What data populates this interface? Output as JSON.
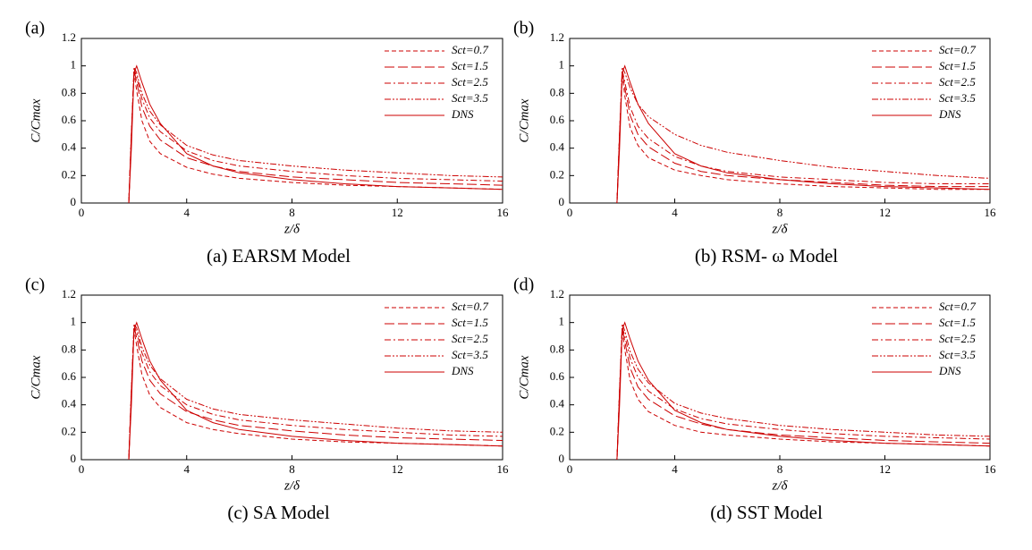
{
  "chart_data": [
    {
      "type": "line",
      "label": "(a)",
      "caption": "(a)  EARSM  Model",
      "xlabel": "z/δ",
      "ylabel": "C/Cmax",
      "xlim": [
        0,
        16
      ],
      "xticks": [
        0,
        4,
        8,
        12,
        16
      ],
      "ylim": [
        0,
        1.2
      ],
      "yticks": [
        0,
        0.2,
        0.4,
        0.6,
        0.8,
        1,
        1.2
      ],
      "legend": "upper right",
      "x": [
        1.8,
        1.9,
        2.0,
        2.1,
        2.3,
        2.6,
        3,
        4,
        5,
        6,
        8,
        10,
        12,
        14,
        16
      ],
      "series": [
        {
          "name": "Sct=0.7",
          "color": "#cc0000",
          "linestyle": "dashed",
          "values": [
            0,
            0.5,
            0.95,
            0.82,
            0.6,
            0.45,
            0.36,
            0.26,
            0.21,
            0.18,
            0.15,
            0.13,
            0.12,
            0.11,
            0.1
          ]
        },
        {
          "name": "Sct=1.5",
          "color": "#cc0000",
          "linestyle": "longdash",
          "values": [
            0,
            0.5,
            0.97,
            0.88,
            0.7,
            0.56,
            0.46,
            0.33,
            0.27,
            0.23,
            0.19,
            0.17,
            0.15,
            0.14,
            0.13
          ]
        },
        {
          "name": "Sct=2.5",
          "color": "#cc0000",
          "linestyle": "dashdot",
          "values": [
            0,
            0.5,
            0.98,
            0.92,
            0.76,
            0.62,
            0.52,
            0.38,
            0.31,
            0.27,
            0.23,
            0.2,
            0.18,
            0.17,
            0.16
          ]
        },
        {
          "name": "Sct=3.5",
          "color": "#cc0000",
          "linestyle": "dashdotdot",
          "values": [
            0,
            0.5,
            0.99,
            0.95,
            0.8,
            0.67,
            0.57,
            0.42,
            0.35,
            0.31,
            0.27,
            0.24,
            0.22,
            0.2,
            0.19
          ]
        },
        {
          "name": "DNS",
          "color": "#cc0000",
          "linestyle": "solid",
          "values": [
            0,
            0.4,
            0.95,
            1.0,
            0.88,
            0.72,
            0.58,
            0.36,
            0.27,
            0.22,
            0.17,
            0.14,
            0.12,
            0.11,
            0.1
          ]
        }
      ]
    },
    {
      "type": "line",
      "label": "(b)",
      "caption": "(b)  RSM- ω Model",
      "xlabel": "z/δ",
      "ylabel": "C/Cmax",
      "xlim": [
        0,
        16
      ],
      "xticks": [
        0,
        4,
        8,
        12,
        16
      ],
      "ylim": [
        0,
        1.2
      ],
      "yticks": [
        0,
        0.2,
        0.4,
        0.6,
        0.8,
        1,
        1.2
      ],
      "legend": "upper right",
      "x": [
        1.8,
        1.9,
        2.0,
        2.1,
        2.3,
        2.6,
        3,
        4,
        5,
        6,
        8,
        10,
        12,
        14,
        16
      ],
      "series": [
        {
          "name": "Sct=0.7",
          "color": "#cc0000",
          "linestyle": "dashed",
          "values": [
            0,
            0.5,
            0.94,
            0.78,
            0.55,
            0.42,
            0.33,
            0.24,
            0.2,
            0.17,
            0.14,
            0.12,
            0.11,
            0.1,
            0.1
          ]
        },
        {
          "name": "Sct=1.5",
          "color": "#cc0000",
          "linestyle": "longdash",
          "values": [
            0,
            0.5,
            0.96,
            0.84,
            0.64,
            0.5,
            0.41,
            0.29,
            0.23,
            0.2,
            0.17,
            0.15,
            0.13,
            0.12,
            0.12
          ]
        },
        {
          "name": "Sct=2.5",
          "color": "#cc0000",
          "linestyle": "dashdot",
          "values": [
            0,
            0.5,
            0.97,
            0.88,
            0.7,
            0.56,
            0.47,
            0.34,
            0.27,
            0.23,
            0.19,
            0.17,
            0.15,
            0.14,
            0.14
          ]
        },
        {
          "name": "Sct=3.5",
          "color": "#cc0000",
          "linestyle": "dashdotdot",
          "values": [
            0,
            0.5,
            0.99,
            0.95,
            0.84,
            0.72,
            0.63,
            0.5,
            0.42,
            0.37,
            0.31,
            0.26,
            0.23,
            0.2,
            0.18
          ]
        },
        {
          "name": "DNS",
          "color": "#cc0000",
          "linestyle": "solid",
          "values": [
            0,
            0.4,
            0.95,
            1.0,
            0.88,
            0.72,
            0.58,
            0.36,
            0.27,
            0.22,
            0.17,
            0.14,
            0.12,
            0.11,
            0.1
          ]
        }
      ]
    },
    {
      "type": "line",
      "label": "(c)",
      "caption": "(c)  SA  Model",
      "xlabel": "z/δ",
      "ylabel": "C/Cmax",
      "xlim": [
        0,
        16
      ],
      "xticks": [
        0,
        4,
        8,
        12,
        16
      ],
      "ylim": [
        0,
        1.2
      ],
      "yticks": [
        0,
        0.2,
        0.4,
        0.6,
        0.8,
        1,
        1.2
      ],
      "legend": "upper right",
      "x": [
        1.8,
        1.9,
        2.0,
        2.1,
        2.3,
        2.6,
        3,
        4,
        5,
        6,
        8,
        10,
        12,
        14,
        16
      ],
      "series": [
        {
          "name": "Sct=0.7",
          "color": "#cc0000",
          "linestyle": "dashed",
          "values": [
            0,
            0.5,
            0.95,
            0.83,
            0.62,
            0.47,
            0.38,
            0.27,
            0.22,
            0.19,
            0.15,
            0.13,
            0.12,
            0.11,
            0.1
          ]
        },
        {
          "name": "Sct=1.5",
          "color": "#cc0000",
          "linestyle": "longdash",
          "values": [
            0,
            0.5,
            0.97,
            0.89,
            0.72,
            0.58,
            0.48,
            0.35,
            0.29,
            0.25,
            0.21,
            0.18,
            0.16,
            0.15,
            0.14
          ]
        },
        {
          "name": "Sct=2.5",
          "color": "#cc0000",
          "linestyle": "dashdot",
          "values": [
            0,
            0.5,
            0.98,
            0.93,
            0.78,
            0.64,
            0.54,
            0.4,
            0.33,
            0.29,
            0.25,
            0.22,
            0.2,
            0.18,
            0.17
          ]
        },
        {
          "name": "Sct=3.5",
          "color": "#cc0000",
          "linestyle": "dashdotdot",
          "values": [
            0,
            0.5,
            0.99,
            0.96,
            0.82,
            0.69,
            0.59,
            0.44,
            0.37,
            0.33,
            0.29,
            0.26,
            0.23,
            0.21,
            0.2
          ]
        },
        {
          "name": "DNS",
          "color": "#cc0000",
          "linestyle": "solid",
          "values": [
            0,
            0.4,
            0.95,
            1.0,
            0.88,
            0.72,
            0.58,
            0.36,
            0.27,
            0.22,
            0.17,
            0.14,
            0.12,
            0.11,
            0.1
          ]
        }
      ]
    },
    {
      "type": "line",
      "label": "(d)",
      "caption": "(d)  SST  Model",
      "xlabel": "z/δ",
      "ylabel": "C/Cmax",
      "xlim": [
        0,
        16
      ],
      "xticks": [
        0,
        4,
        8,
        12,
        16
      ],
      "ylim": [
        0,
        1.2
      ],
      "yticks": [
        0,
        0.2,
        0.4,
        0.6,
        0.8,
        1,
        1.2
      ],
      "legend": "upper right",
      "x": [
        1.8,
        1.9,
        2.0,
        2.1,
        2.3,
        2.6,
        3,
        4,
        5,
        6,
        8,
        10,
        12,
        14,
        16
      ],
      "series": [
        {
          "name": "Sct=0.7",
          "color": "#cc0000",
          "linestyle": "dashed",
          "values": [
            0,
            0.5,
            0.94,
            0.8,
            0.58,
            0.44,
            0.35,
            0.25,
            0.2,
            0.18,
            0.15,
            0.13,
            0.12,
            0.11,
            0.1
          ]
        },
        {
          "name": "Sct=1.5",
          "color": "#cc0000",
          "linestyle": "longdash",
          "values": [
            0,
            0.5,
            0.96,
            0.86,
            0.67,
            0.53,
            0.44,
            0.32,
            0.26,
            0.22,
            0.18,
            0.16,
            0.14,
            0.13,
            0.12
          ]
        },
        {
          "name": "Sct=2.5",
          "color": "#cc0000",
          "linestyle": "dashdot",
          "values": [
            0,
            0.5,
            0.97,
            0.9,
            0.74,
            0.6,
            0.5,
            0.37,
            0.3,
            0.26,
            0.22,
            0.19,
            0.17,
            0.16,
            0.15
          ]
        },
        {
          "name": "Sct=3.5",
          "color": "#cc0000",
          "linestyle": "dashdotdot",
          "values": [
            0,
            0.5,
            0.99,
            0.94,
            0.79,
            0.66,
            0.56,
            0.41,
            0.34,
            0.3,
            0.25,
            0.22,
            0.2,
            0.18,
            0.17
          ]
        },
        {
          "name": "DNS",
          "color": "#cc0000",
          "linestyle": "solid",
          "values": [
            0,
            0.4,
            0.95,
            1.0,
            0.88,
            0.72,
            0.58,
            0.36,
            0.27,
            0.22,
            0.17,
            0.14,
            0.12,
            0.11,
            0.1
          ]
        }
      ]
    }
  ]
}
